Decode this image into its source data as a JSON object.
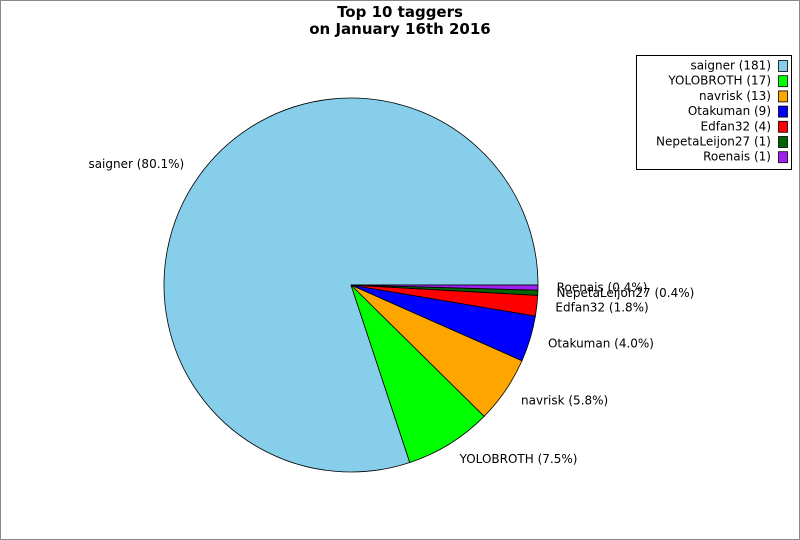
{
  "chart_data": {
    "type": "pie",
    "title": "Top 10 taggers\non January 16th 2016",
    "categories": [
      "saigner",
      "YOLOBROTH",
      "navrisk",
      "Otakuman",
      "Edfan32",
      "NepetaLeijon27",
      "Roenais"
    ],
    "values": [
      181,
      17,
      13,
      9,
      4,
      1,
      1
    ],
    "legend_labels": [
      "saigner (181)",
      "YOLOBROTH (17)",
      "navrisk (13)",
      "Otakuman (9)",
      "Edfan32 (4)",
      "NepetaLeijon27 (1)",
      "Roenais (1)"
    ],
    "slice_labels": [
      "saigner (80.1%)",
      "YOLOBROTH (7.5%)",
      "navrisk (5.8%)",
      "Otakuman (4.0%)",
      "Edfan32 (1.8%)",
      "NepetaLeijon27 (0.4%)",
      "Roenais (0.4%)"
    ],
    "colors": [
      "#87ceeb",
      "#00ff00",
      "#ffa500",
      "#0000ff",
      "#ff0000",
      "#006400",
      "#a020f0"
    ],
    "legend": "upper right"
  }
}
